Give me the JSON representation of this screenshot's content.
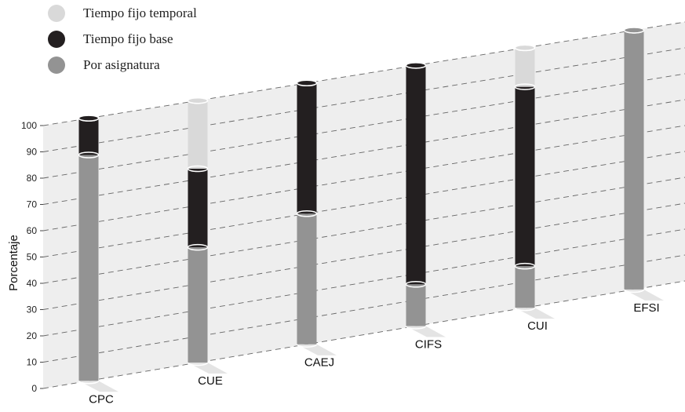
{
  "chart_data": {
    "type": "bar",
    "stacked": true,
    "ylabel": "Porcentaje",
    "ylim": [
      0,
      100
    ],
    "yticks": [
      0,
      10,
      20,
      30,
      40,
      50,
      60,
      70,
      80,
      90,
      100
    ],
    "grid": true,
    "legend_position": "top-left",
    "categories": [
      "CPC",
      "CUE",
      "CAEJ",
      "CIFS",
      "CUI",
      "EFSI"
    ],
    "series": [
      {
        "name": "Por asignatura",
        "color": "#939393",
        "values": [
          86,
          44,
          50,
          16,
          16,
          100
        ]
      },
      {
        "name": "Tiempo fijo base",
        "color": "#231f20",
        "values": [
          14,
          30,
          50,
          84,
          69,
          0
        ]
      },
      {
        "name": "Tiempo fijo temporal",
        "color": "#d9d9d9",
        "values": [
          0,
          26,
          0,
          0,
          15,
          0
        ]
      }
    ],
    "legend_order": [
      "Tiempo fijo temporal",
      "Tiempo fijo base",
      "Por asignatura"
    ]
  }
}
